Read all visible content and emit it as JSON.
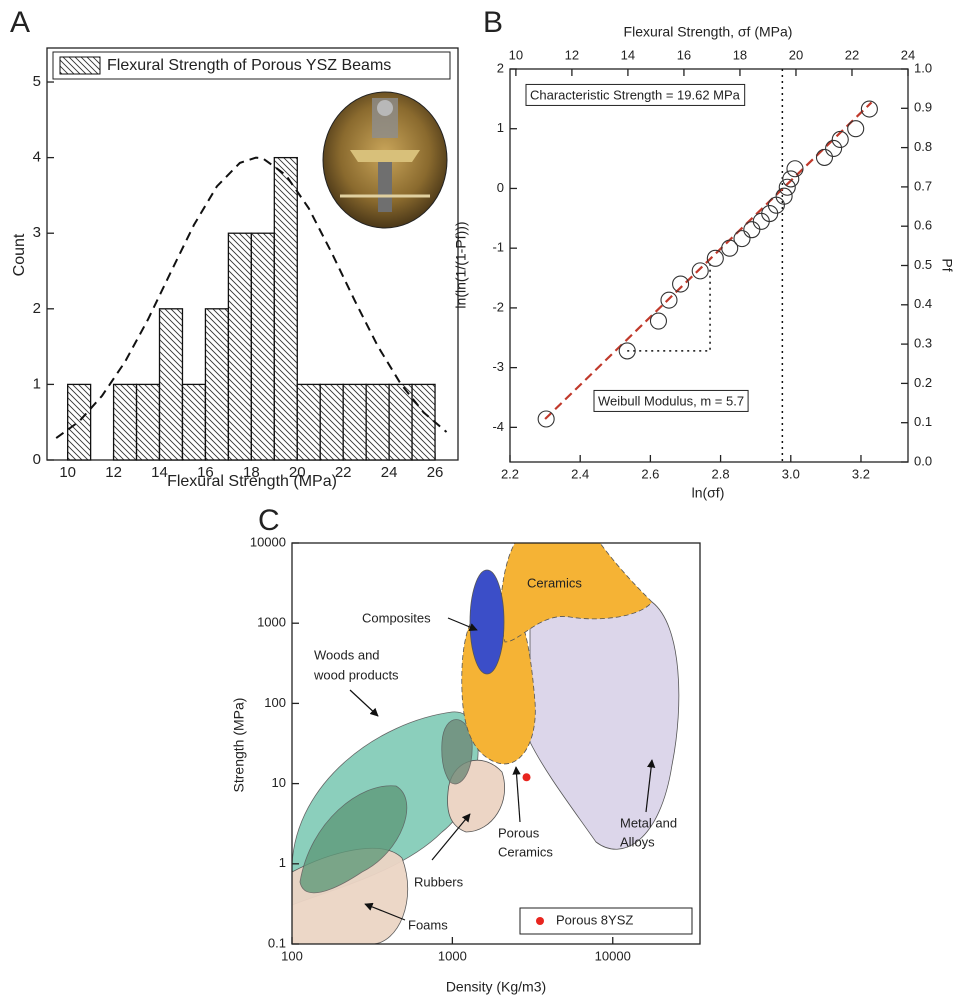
{
  "chart_data": [
    {
      "type": "histogram",
      "panel": "A",
      "xlabel": "Flexural Strength (MPa)",
      "ylabel": "Count",
      "legend": "Flexural Strength of Porous YSZ Beams",
      "bins": [
        10,
        11,
        12,
        13,
        14,
        15,
        16,
        17,
        18,
        19,
        20,
        21,
        22,
        23,
        24,
        25,
        26
      ],
      "values": [
        1,
        0,
        1,
        1,
        2,
        1,
        2,
        3,
        3,
        4,
        1,
        1,
        1,
        1,
        1,
        1
      ],
      "color": "#ffffff",
      "edgecolor": "#111111",
      "hatch": true,
      "fit": {
        "x": [
          9.5,
          10.5,
          11.5,
          12.5,
          13.5,
          14.5,
          15.5,
          16.5,
          17.5,
          18.2,
          18.5,
          19.5,
          20.5,
          21.5,
          22.5,
          23.5,
          24.5,
          25.5,
          26.5
        ],
        "values": [
          0.29,
          0.51,
          0.85,
          1.3,
          1.86,
          2.49,
          3.11,
          3.62,
          3.93,
          4.0,
          3.99,
          3.77,
          3.33,
          2.74,
          2.11,
          1.51,
          1.01,
          0.63,
          0.37
        ]
      },
      "xlim": [
        9.1,
        27
      ],
      "ylim": [
        0,
        5.45
      ],
      "xticks": [
        10,
        12,
        14,
        16,
        18,
        20,
        22,
        24,
        26
      ],
      "yticks": [
        0,
        1,
        2,
        3,
        4,
        5
      ]
    },
    {
      "type": "scatter",
      "panel": "B",
      "xlabel": "ln(σf)",
      "ylabel": "ln(ln(1/(1-Pf)))",
      "x2label": "Flexural Strength, σf (MPa)",
      "y2label": "Pf",
      "x": [
        2.303,
        2.534,
        2.623,
        2.653,
        2.686,
        2.742,
        2.785,
        2.826,
        2.861,
        2.889,
        2.916,
        2.94,
        2.959,
        2.981,
        2.99,
        3.0,
        3.012,
        3.096,
        3.122,
        3.141,
        3.185,
        3.224
      ],
      "values": [
        -3.86,
        -2.72,
        -2.22,
        -1.87,
        -1.6,
        -1.38,
        -1.17,
        -1.0,
        -0.84,
        -0.69,
        -0.55,
        -0.42,
        -0.28,
        -0.13,
        0.02,
        0.16,
        0.33,
        0.52,
        0.67,
        0.82,
        1.0,
        1.33
      ],
      "color": "#333333",
      "fit": {
        "x": [
          2.3,
          3.23
        ],
        "values": [
          -3.86,
          1.44
        ],
        "color": "#c0392b"
      },
      "vline": 2.976,
      "slope_triangle": {
        "x": [
          2.534,
          2.77,
          2.77
        ],
        "values": [
          -2.72,
          -2.72,
          -1.18
        ]
      },
      "annotations": [
        "Characteristic Strength = 19.62 MPa",
        "Weibull Modulus, m = 5.7"
      ],
      "xlim": [
        2.2,
        3.334
      ],
      "ylim": [
        -4.58,
        2
      ],
      "xticks": [
        2.2,
        2.4,
        2.6,
        2.8,
        {
          "value": 3,
          "label": "3.0"
        },
        3.2
      ],
      "yticks": [
        -4,
        -3,
        -2,
        -1,
        0,
        1,
        2
      ],
      "x2lim": [
        9.79,
        24
      ],
      "x2ticks": [
        10,
        12,
        14,
        16,
        18,
        20,
        22,
        24
      ],
      "y2lim": [
        0,
        1
      ],
      "y2ticks": [
        {
          "value": 0,
          "label": "0.0"
        },
        0.1,
        0.2,
        0.3,
        0.4,
        0.5,
        0.6,
        0.7,
        0.8,
        0.9,
        {
          "value": 1,
          "label": "1.0"
        }
      ]
    },
    {
      "type": "scatter",
      "panel": "C",
      "xlabel": "Density (Kg/m3)",
      "ylabel": "Strength (MPa)",
      "series": [
        {
          "name": "Porous 8YSZ",
          "color": "#e8251f",
          "x": [
            2900
          ],
          "values": [
            12
          ]
        }
      ],
      "legend_position": "lower right",
      "region_labels": [
        [
          "Ceramics"
        ],
        [
          "Composites"
        ],
        [
          "Woods and",
          "wood products"
        ],
        [
          "Rubbers"
        ],
        [
          "Foams"
        ],
        [
          "Porous",
          "Ceramics"
        ],
        [
          "Metal and",
          "Alloys"
        ]
      ],
      "xlog": true,
      "ylog": true,
      "xlim": [
        100,
        35000
      ],
      "ylim": [
        0.1,
        10000
      ],
      "xticks": [
        100,
        1000,
        10000
      ],
      "yticks": [
        0.1,
        1,
        10,
        100,
        1000,
        10000
      ]
    }
  ]
}
